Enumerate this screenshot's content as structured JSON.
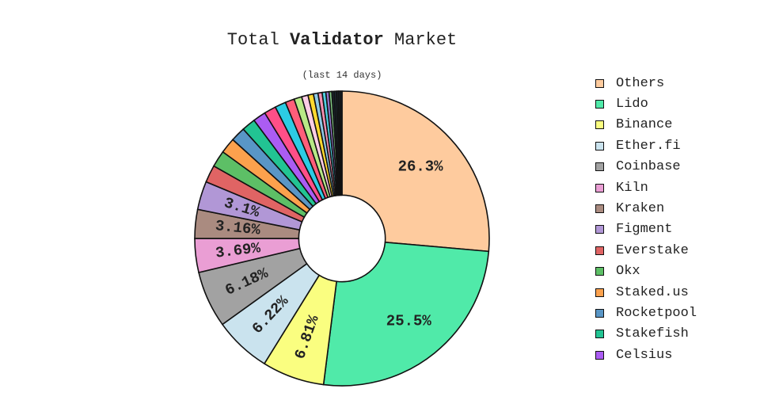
{
  "title_prefix": "Total ",
  "title_bold": "Validator",
  "title_suffix": " Market",
  "subtitle": "(last 14 days)",
  "chart_data": {
    "type": "pie",
    "title": "Total Validator Market",
    "subtitle": "(last 14 days)",
    "hole": 0.3,
    "legend_position": "right",
    "slices": [
      {
        "label": "Others",
        "value": 26.3,
        "text": "26.3%",
        "color": "#fecb9e"
      },
      {
        "label": "Lido",
        "value": 25.5,
        "text": "25.5%",
        "color": "#50eaa9"
      },
      {
        "label": "Binance",
        "value": 6.81,
        "text": "6.81%",
        "color": "#fafe80"
      },
      {
        "label": "Ether.fi",
        "value": 6.22,
        "text": "6.22%",
        "color": "#cae3ee"
      },
      {
        "label": "Coinbase",
        "value": 6.18,
        "text": "6.18%",
        "color": "#a2a2a2"
      },
      {
        "label": "Kiln",
        "value": 3.69,
        "text": "3.69%",
        "color": "#ea9ed4"
      },
      {
        "label": "Kraken",
        "value": 3.16,
        "text": "3.16%",
        "color": "#aa8b80"
      },
      {
        "label": "Figment",
        "value": 3.1,
        "text": "3.1%",
        "color": "#b197d6"
      },
      {
        "label": "Everstake",
        "value": 1.9,
        "text": "",
        "color": "#e06464"
      },
      {
        "label": "Okx",
        "value": 1.8,
        "text": "",
        "color": "#5dbf66"
      },
      {
        "label": "Staked.us",
        "value": 1.7,
        "text": "",
        "color": "#fca14d"
      },
      {
        "label": "Rocketpool",
        "value": 1.6,
        "text": "",
        "color": "#5996c6"
      },
      {
        "label": "Stakefish",
        "value": 1.5,
        "text": "",
        "color": "#22c493"
      },
      {
        "label": "Celsius",
        "value": 1.4,
        "text": "",
        "color": "#ab5cf3"
      },
      {
        "label": "",
        "value": 1.3,
        "text": "",
        "color": "#ff4f88"
      },
      {
        "label": "",
        "value": 1.2,
        "text": "",
        "color": "#2ccce4"
      },
      {
        "label": "",
        "value": 1.0,
        "text": "",
        "color": "#ff5e7a"
      },
      {
        "label": "",
        "value": 0.85,
        "text": "",
        "color": "#b8e986"
      },
      {
        "label": "",
        "value": 0.7,
        "text": "",
        "color": "#fccde5"
      },
      {
        "label": "",
        "value": 0.6,
        "text": "",
        "color": "#ffd92f"
      },
      {
        "label": "",
        "value": 0.5,
        "text": "",
        "color": "#8ecae6"
      },
      {
        "label": "",
        "value": 0.45,
        "text": "",
        "color": "#f48fb1"
      },
      {
        "label": "",
        "value": 0.4,
        "text": "",
        "color": "#4dd0e1"
      },
      {
        "label": "",
        "value": 0.35,
        "text": "",
        "color": "#9575cd"
      },
      {
        "label": "",
        "value": 0.3,
        "text": "",
        "color": "#81c784"
      },
      {
        "label": "",
        "value": 0.25,
        "text": "",
        "color": "#1e2a36"
      },
      {
        "label": "",
        "value": 0.25,
        "text": "",
        "color": "#1e2a36"
      },
      {
        "label": "",
        "value": 0.2,
        "text": "",
        "color": "#1e2a36"
      },
      {
        "label": "",
        "value": 0.2,
        "text": "",
        "color": "#1e2a36"
      },
      {
        "label": "",
        "value": 0.2,
        "text": "",
        "color": "#1e2a36"
      }
    ],
    "legend": [
      "Others",
      "Lido",
      "Binance",
      "Ether.fi",
      "Coinbase",
      "Kiln",
      "Kraken",
      "Figment",
      "Everstake",
      "Okx",
      "Staked.us",
      "Rocketpool",
      "Stakefish",
      "Celsius"
    ]
  }
}
